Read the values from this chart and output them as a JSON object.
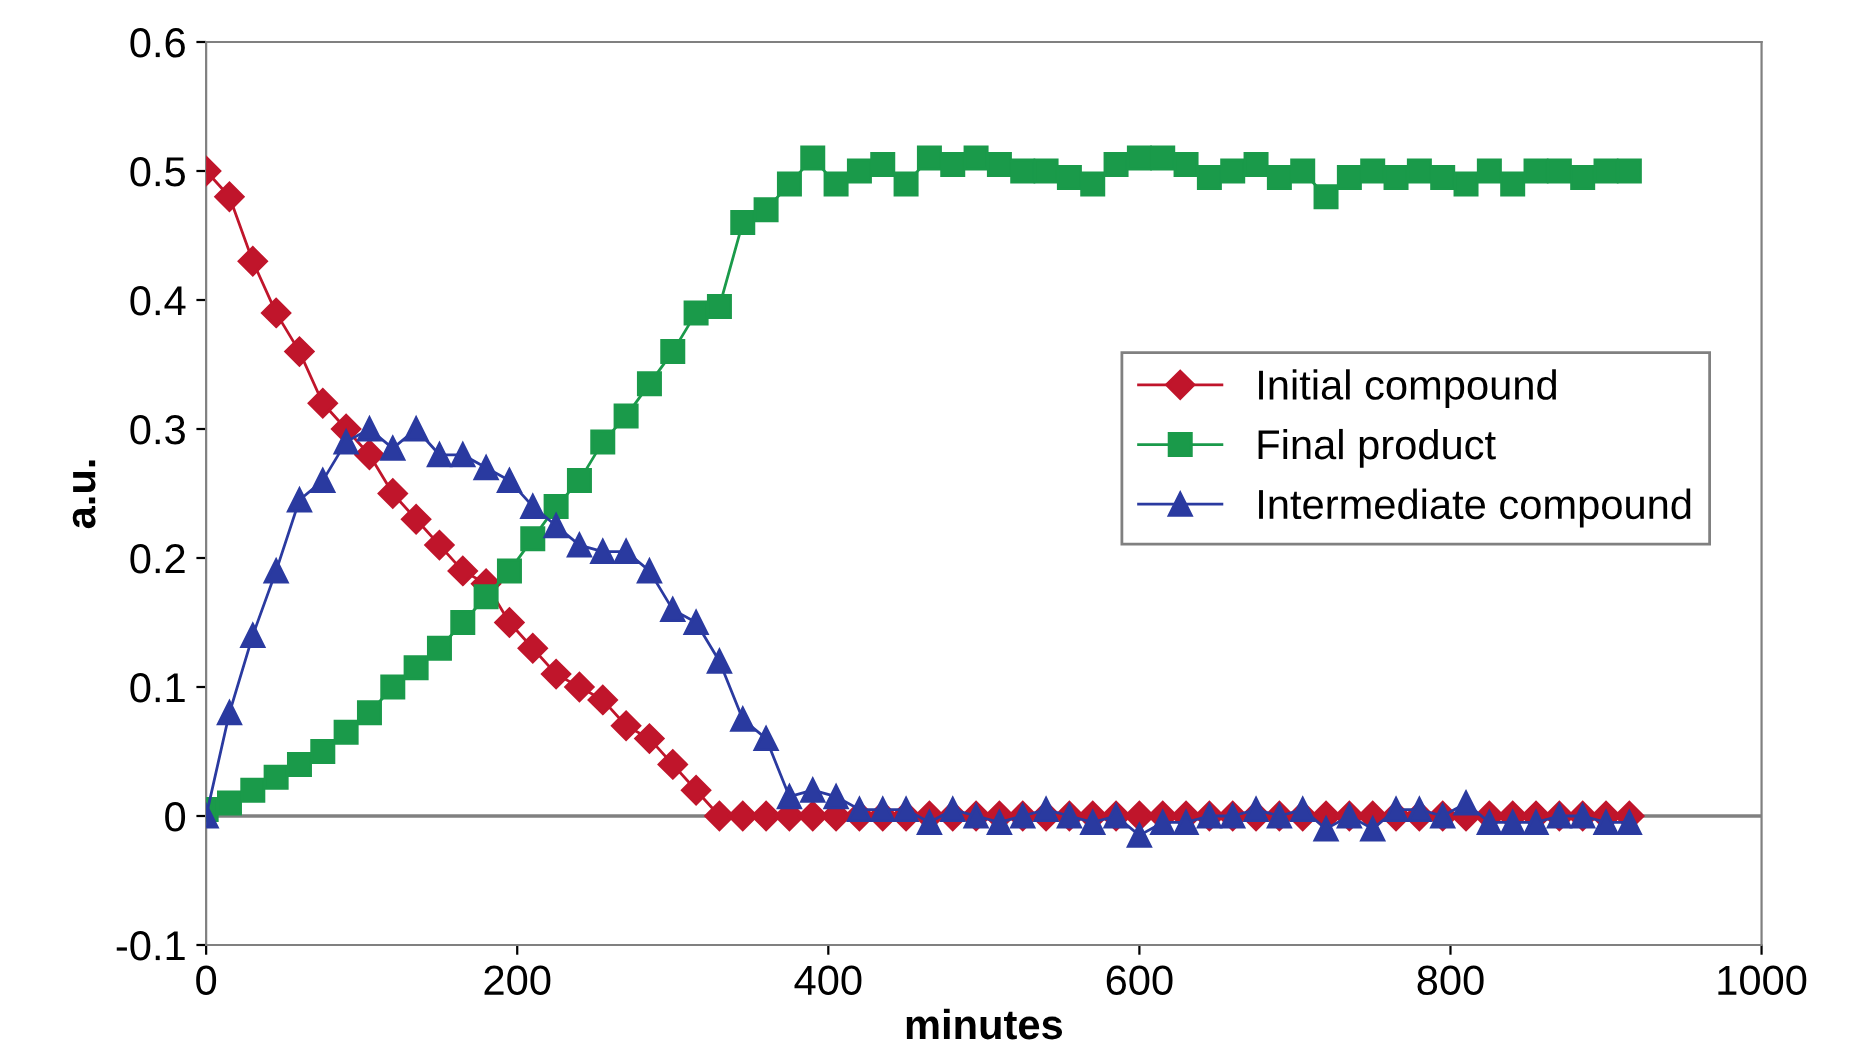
{
  "chart_data": {
    "type": "line",
    "xlabel": "minutes",
    "ylabel": "a.u.",
    "xlim": [
      0,
      1000
    ],
    "xticks": [
      0,
      200,
      400,
      600,
      800,
      1000
    ],
    "ylim": [
      -0.1,
      0.6
    ],
    "yticks": [
      -0.1,
      0,
      0.1,
      0.2,
      0.3,
      0.4,
      0.5,
      0.6
    ],
    "grid": false,
    "legend": "center right",
    "x": [
      0,
      15,
      30,
      45,
      60,
      75,
      90,
      105,
      120,
      135,
      150,
      165,
      180,
      195,
      210,
      225,
      240,
      255,
      270,
      285,
      300,
      315,
      330,
      345,
      360,
      375,
      390,
      405,
      420,
      435,
      450,
      465,
      480,
      495,
      510,
      525,
      540,
      555,
      570,
      585,
      600,
      615,
      630,
      645,
      660,
      675,
      690,
      705,
      720,
      735,
      750,
      765,
      780,
      795,
      810,
      825,
      840,
      855,
      870,
      885,
      900,
      915
    ],
    "ref_lines": [
      {
        "axis": "y",
        "value": 0,
        "color": "#808080"
      }
    ],
    "series": [
      {
        "name": "Initial compound",
        "color": "#c0152b",
        "marker": "diamond",
        "values": [
          0.5,
          0.48,
          0.43,
          0.39,
          0.36,
          0.32,
          0.3,
          0.28,
          0.25,
          0.23,
          0.21,
          0.19,
          0.18,
          0.15,
          0.13,
          0.11,
          0.1,
          0.09,
          0.07,
          0.06,
          0.04,
          0.02,
          0.0,
          0,
          0,
          0,
          0,
          0,
          0,
          0,
          0,
          0,
          0,
          0,
          0,
          0,
          0,
          0,
          0,
          0,
          0,
          0,
          0,
          0,
          0,
          0,
          0,
          0,
          0,
          0,
          0,
          0,
          0,
          0,
          0,
          0,
          0,
          0,
          0,
          0,
          0,
          0
        ]
      },
      {
        "name": "Final product",
        "color": "#1a9a4a",
        "marker": "square",
        "values": [
          0.005,
          0.01,
          0.02,
          0.03,
          0.04,
          0.05,
          0.065,
          0.08,
          0.1,
          0.115,
          0.13,
          0.15,
          0.17,
          0.19,
          0.215,
          0.24,
          0.26,
          0.29,
          0.31,
          0.335,
          0.36,
          0.39,
          0.395,
          0.46,
          0.47,
          0.49,
          0.51,
          0.49,
          0.5,
          0.505,
          0.49,
          0.51,
          0.505,
          0.51,
          0.505,
          0.5,
          0.5,
          0.495,
          0.49,
          0.505,
          0.51,
          0.51,
          0.505,
          0.495,
          0.5,
          0.505,
          0.495,
          0.5,
          0.48,
          0.495,
          0.5,
          0.495,
          0.5,
          0.495,
          0.49,
          0.5,
          0.49,
          0.5,
          0.5,
          0.495,
          0.5,
          0.5
        ]
      },
      {
        "name": "Intermediate compound",
        "color": "#2a3aa0",
        "marker": "triangle",
        "values": [
          0.0,
          0.08,
          0.14,
          0.19,
          0.245,
          0.26,
          0.29,
          0.3,
          0.285,
          0.3,
          0.28,
          0.28,
          0.27,
          0.26,
          0.24,
          0.225,
          0.21,
          0.205,
          0.205,
          0.19,
          0.16,
          0.15,
          0.12,
          0.075,
          0.06,
          0.015,
          0.02,
          0.015,
          0.005,
          0.005,
          0.005,
          -0.005,
          0.005,
          0.0,
          -0.005,
          0.0,
          0.005,
          0.0,
          -0.005,
          0.0,
          -0.015,
          -0.005,
          -0.005,
          0.0,
          0.0,
          0.005,
          0.0,
          0.005,
          -0.01,
          0.0,
          -0.01,
          0.005,
          0.005,
          0.0,
          0.01,
          -0.005,
          -0.005,
          -0.005,
          0.0,
          0.0,
          -0.005,
          -0.005
        ]
      }
    ]
  }
}
